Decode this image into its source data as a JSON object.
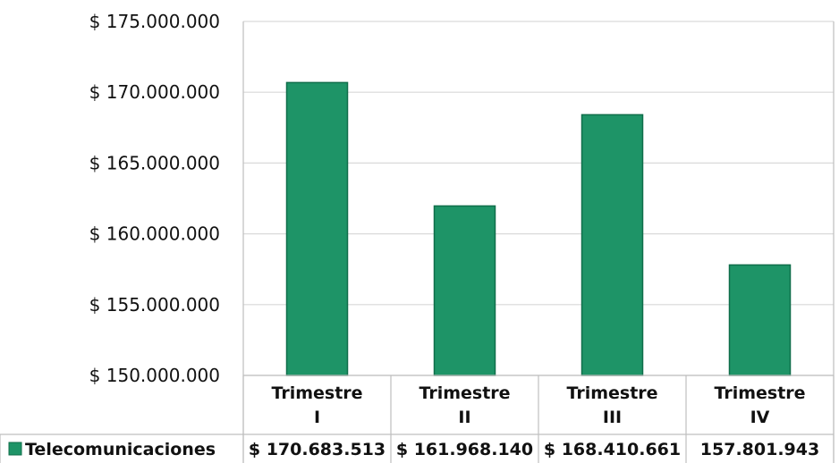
{
  "chart_data": {
    "type": "bar",
    "categories": [
      [
        "Trimestre",
        "I"
      ],
      [
        "Trimestre",
        "II"
      ],
      [
        "Trimestre",
        "III"
      ],
      [
        "Trimestre",
        "IV"
      ]
    ],
    "series": [
      {
        "name": "Telecomunicaciones",
        "values": [
          170683513,
          161968140,
          168410661,
          157801943
        ],
        "value_labels": [
          "$ 170.683.513",
          "$ 161.968.140",
          "$ 168.410.661",
          "157.801.943"
        ]
      }
    ],
    "y_ticks": [
      150000000,
      155000000,
      160000000,
      165000000,
      170000000,
      175000000
    ],
    "y_tick_labels": [
      "$ 150.000.000",
      "$ 155.000.000",
      "$ 160.000.000",
      "$ 165.000.000",
      "$ 170.000.000",
      "$ 175.000.000"
    ],
    "ylim": [
      150000000,
      175000000
    ],
    "grid": true,
    "legend": "data-table",
    "colors": {
      "bar": "#1e9467",
      "bar_edge": "#0f6e4a",
      "grid": "#d9d9d9",
      "axis": "#bfbfbf"
    }
  }
}
